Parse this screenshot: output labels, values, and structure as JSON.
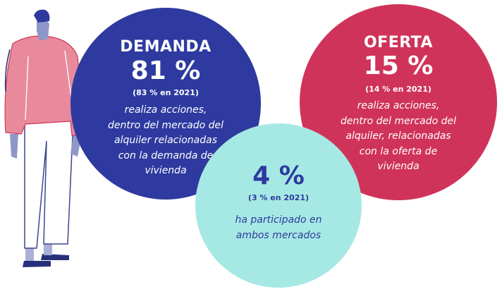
{
  "colors": {
    "demanda": "#2e3a9f",
    "oferta": "#d0335a",
    "ambos": "#a6e9e4",
    "ambos_text": "#2e3a9f",
    "figure_sweater": "#e98a9c",
    "figure_skin": "#8f97c8"
  },
  "demanda": {
    "title": "DEMANDA",
    "value": "81 %",
    "previous": "(83 % en 2021)",
    "description": [
      "realiza acciones,",
      "dentro del mercado del",
      "alquiler relacionadas",
      "con la demanda de",
      "vivienda"
    ]
  },
  "oferta": {
    "title": "OFERTA",
    "value": "15 %",
    "previous": "(14 % en 2021)",
    "description": [
      "realiza acciones,",
      "dentro del mercado del",
      "alquiler, relacionadas",
      "con la oferta de",
      "vivienda"
    ]
  },
  "ambos": {
    "value": "4 %",
    "previous": "(3 % en 2021)",
    "description": [
      "ha participado en",
      "ambos mercados"
    ]
  },
  "illustration": {
    "icon": "standing-person-illustration"
  }
}
